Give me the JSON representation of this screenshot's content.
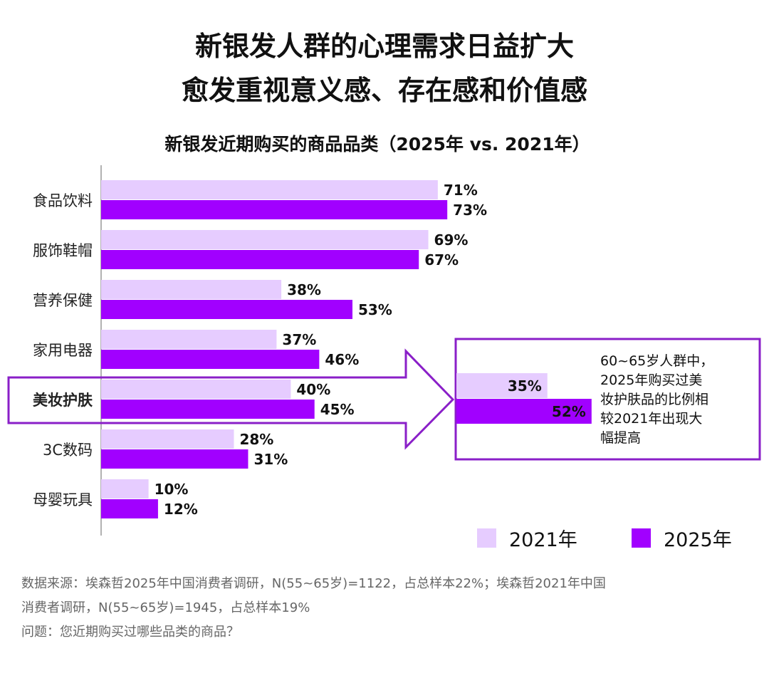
{
  "title_lines": [
    "新银发人群的心理需求日益扩大",
    "愈发重视意义感、存在感和价值感"
  ],
  "chart_data": {
    "type": "bar",
    "orientation": "horizontal",
    "title": "新银发近期购买的商品品类（2025年 vs. 2021年）",
    "categories": [
      "食品饮料",
      "服饰鞋帽",
      "营养保健",
      "家用电器",
      "美妆护肤",
      "3C数码",
      "母婴玩具"
    ],
    "series": [
      {
        "name": "2021年",
        "color": "#E6CCFF",
        "values": [
          71,
          69,
          38,
          37,
          40,
          28,
          10
        ]
      },
      {
        "name": "2025年",
        "color": "#A100FF",
        "values": [
          73,
          67,
          53,
          46,
          45,
          31,
          12
        ]
      }
    ],
    "value_suffix": "%",
    "highlight_category": "美妆护肤",
    "highlight_color": "#A100FF",
    "legend_position": "bottom-right",
    "grid": false,
    "callout": {
      "values": [
        35,
        52
      ],
      "text_lines": [
        "60~65岁人群中，",
        "2025年购买过美",
        "妆护肤品的比例相",
        "较2021年出现大",
        "幅提高"
      ]
    }
  },
  "footnote_lines": [
    "数据来源：埃森哲2025年中国消费者调研，N(55~65岁)=1122，占总样本22%；埃森哲2021年中国",
    "消费者调研，N(55~65岁)=1945，占总样本19%",
    "问题：您近期购买过哪些品类的商品？"
  ]
}
